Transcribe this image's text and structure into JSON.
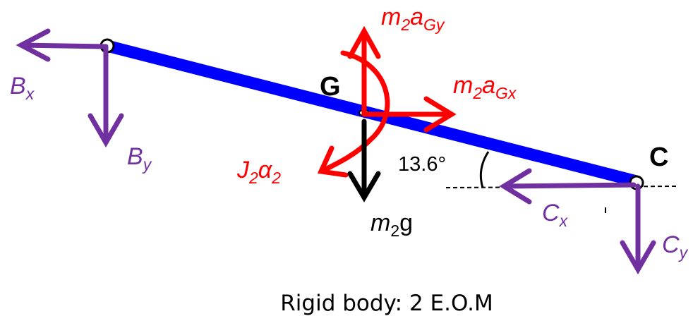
{
  "labels": {
    "m2aGy": {
      "m": "m",
      "sub1": "2",
      "a": "a",
      "sub2": "Gy"
    },
    "m2aGx": {
      "m": "m",
      "sub1": "2",
      "a": "a",
      "sub2": "Gx"
    },
    "G": "G",
    "C": "C",
    "Bx": {
      "main": "B",
      "sub": "x"
    },
    "By": {
      "main": "B",
      "sub": "y"
    },
    "J2alpha2": {
      "j": "J",
      "sub1": "2",
      "alpha": "α",
      "sub2": "2"
    },
    "angle": "13.6°",
    "m2g": {
      "m": "m",
      "sub": "2",
      "g": "g"
    },
    "Cx": {
      "main": "C",
      "sub": "x"
    },
    "Cy": {
      "main": "C",
      "sub": "y"
    }
  },
  "caption": "Rigid body: 2 E.O.M",
  "colors": {
    "link": "#0000ff",
    "reaction": "#7030a0",
    "inertial": "#ff0000",
    "gravity": "#000000"
  }
}
